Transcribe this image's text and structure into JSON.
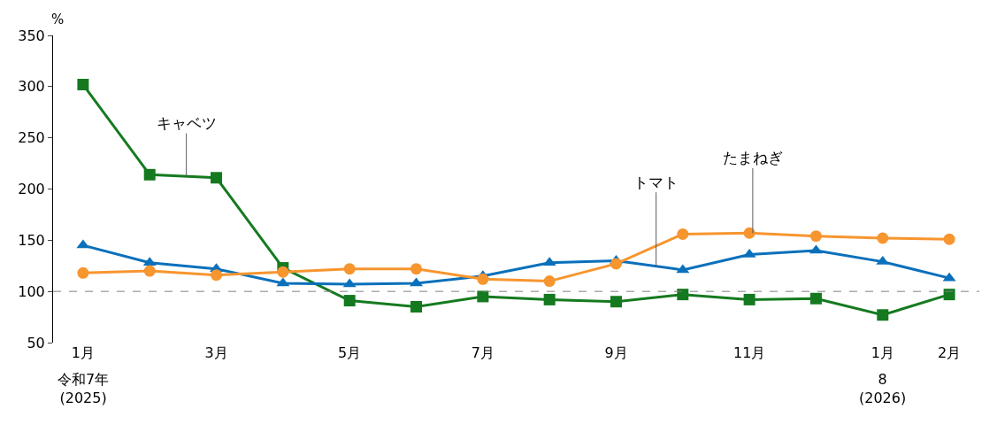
{
  "chart_data": {
    "type": "line",
    "ylabel": "%",
    "categories": [
      "1月",
      null,
      "3月",
      null,
      "5月",
      null,
      "7月",
      null,
      "9月",
      null,
      "11月",
      null,
      "1月",
      "2月"
    ],
    "annotations": [
      "令和7年\n(2025)",
      "8\n(2026)"
    ],
    "series": [
      {
        "name": "キャベツ",
        "color": "#157a1f",
        "marker": "square",
        "values": [
          302,
          214,
          211,
          123,
          91,
          85,
          95,
          92,
          90,
          97,
          92,
          93,
          77,
          97
        ]
      },
      {
        "name": "トマト",
        "color": "#0a70bb",
        "marker": "triangle",
        "values": [
          145,
          128,
          122,
          108,
          107,
          108,
          115,
          128,
          130,
          121,
          136,
          140,
          129,
          113
        ]
      },
      {
        "name": "たまねぎ",
        "color": "#f7952f",
        "marker": "circle",
        "values": [
          118,
          120,
          116,
          119,
          122,
          122,
          112,
          110,
          127,
          156,
          157,
          154,
          152,
          151
        ]
      }
    ],
    "ylim": [
      50,
      350
    ],
    "yticks": [
      50,
      100,
      150,
      200,
      250,
      300,
      350
    ],
    "ref_lines": [
      {
        "axis": "y",
        "value": 100,
        "color": "#808080",
        "line_style": "dashed"
      }
    ],
    "legend": false
  }
}
